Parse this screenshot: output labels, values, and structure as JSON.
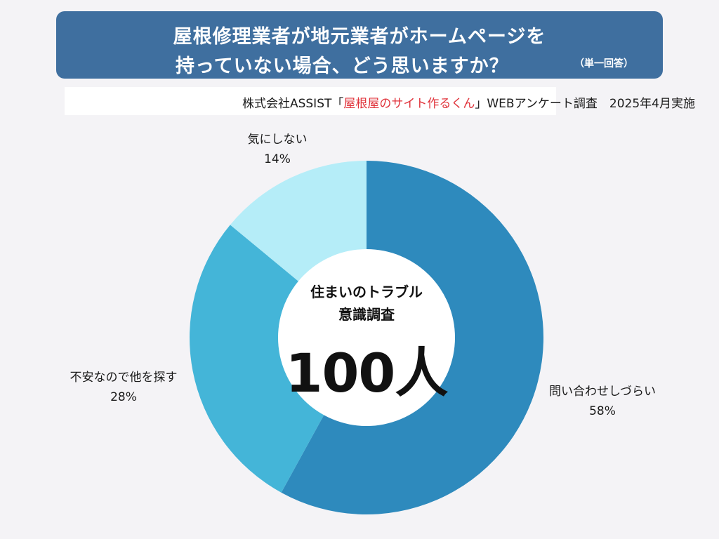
{
  "title": {
    "line1": "屋根修理業者が地元業者がホームページを",
    "line2": "持っていない場合、どう思いますか？",
    "note": "（単一回答）"
  },
  "source": {
    "prefix": "株式会社ASSIST「",
    "highlight": "屋根屋のサイト作るくん",
    "suffix": "」WEBアンケート調査　2025年4月実施",
    "highlight_color": "#e0323a"
  },
  "center": {
    "line1": "住まいのトラブル",
    "line2": "意識調査",
    "count": "100人"
  },
  "chart_data": {
    "type": "pie",
    "style": "donut",
    "title": "屋根修理業者が地元業者がホームページを持っていない場合、どう思いますか？",
    "categories": [
      "問い合わせしづらい",
      "不安なので他を探す",
      "気にしない"
    ],
    "values": [
      58,
      28,
      14
    ],
    "value_labels": [
      "58%",
      "28%",
      "14%"
    ],
    "colors": [
      "#2e8abd",
      "#44b5d8",
      "#b5edf8"
    ],
    "total_respondents": 100,
    "unit": "%"
  }
}
